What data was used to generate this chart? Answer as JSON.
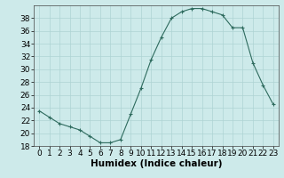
{
  "x": [
    0,
    1,
    2,
    3,
    4,
    5,
    6,
    7,
    8,
    9,
    10,
    11,
    12,
    13,
    14,
    15,
    16,
    17,
    18,
    19,
    20,
    21,
    22,
    23
  ],
  "y": [
    23.5,
    22.5,
    21.5,
    21.0,
    20.5,
    19.5,
    18.5,
    18.5,
    19.0,
    23.0,
    27.0,
    31.5,
    35.0,
    38.0,
    39.0,
    39.5,
    39.5,
    39.0,
    38.5,
    36.5,
    36.5,
    31.0,
    27.5,
    24.5
  ],
  "xlabel": "Humidex (Indice chaleur)",
  "ylim": [
    18,
    40
  ],
  "yticks": [
    18,
    20,
    22,
    24,
    26,
    28,
    30,
    32,
    34,
    36,
    38
  ],
  "xticks": [
    0,
    1,
    2,
    3,
    4,
    5,
    6,
    7,
    8,
    9,
    10,
    11,
    12,
    13,
    14,
    15,
    16,
    17,
    18,
    19,
    20,
    21,
    22,
    23
  ],
  "line_color": "#2e6b5e",
  "marker": "+",
  "bg_color": "#cdeaea",
  "grid_color": "#aed4d4",
  "label_fontsize": 7.5,
  "tick_fontsize": 6.5
}
